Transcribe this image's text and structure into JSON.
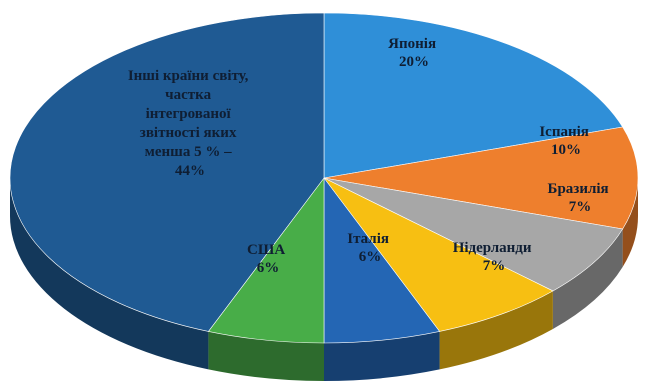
{
  "chart_data": {
    "type": "pie",
    "style": "3d",
    "series": [
      {
        "slices": [
          {
            "label": "Японія",
            "value": 20,
            "value_label": "20%",
            "color": "#2f8fd8"
          },
          {
            "label": "Іспанія",
            "value": 10,
            "value_label": "10%",
            "color": "#ee7f2d"
          },
          {
            "label": "Бразилія",
            "value": 7,
            "value_label": "7%",
            "color": "#a7a7a7"
          },
          {
            "label": "Нідерланди",
            "value": 7,
            "value_label": "7%",
            "color": "#f7bf12"
          },
          {
            "label": "Італія",
            "value": 6,
            "value_label": "6%",
            "color": "#2466b4"
          },
          {
            "label": "США",
            "value": 6,
            "value_label": "6%",
            "color": "#48ad48"
          },
          {
            "label": "Інші країни світу, частка інтегрованої звітності яких менша 5 % –",
            "label_lines": [
              "Інші країни світу,",
              "частка",
              "інтегрованої",
              "звітності яких",
              "менша 5 % –"
            ],
            "value": 44,
            "value_label": "44%",
            "color": "#1f5a93"
          }
        ]
      }
    ]
  }
}
